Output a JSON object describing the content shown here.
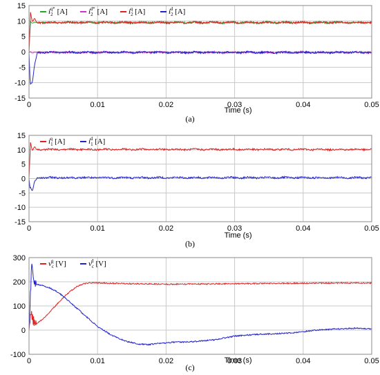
{
  "chart_data": [
    {
      "type": "line",
      "panel_label": "(a)",
      "xlabel": "Time (s)",
      "ylabel": "",
      "xlim": [
        0,
        0.05
      ],
      "ylim": [
        -15,
        15
      ],
      "xticks": [
        "0",
        "0.01",
        "0.02",
        "0.03",
        "0.04",
        "0.05"
      ],
      "yticks": [
        "15",
        "10",
        "5",
        "0",
        "-5",
        "-10",
        "-15"
      ],
      "grid": true,
      "legend_position": "top-left",
      "series": [
        {
          "name": "i2q* [A]",
          "sym": "i",
          "sub": "2",
          "sup": "q*",
          "unit": "[A]",
          "color": "#22aa22",
          "steady": 9.5,
          "start": 0
        },
        {
          "name": "i2d* [A]",
          "sym": "i",
          "sub": "2",
          "sup": "d*",
          "unit": "[A]",
          "color": "#cc33cc",
          "steady": -0.2,
          "start": 0
        },
        {
          "name": "i2q [A]",
          "sym": "i",
          "sub": "2",
          "sup": "q",
          "unit": "[A]",
          "color": "#dd2222",
          "steady": 9.5,
          "start": 0,
          "peak": 11.5
        },
        {
          "name": "i2d [A]",
          "sym": "i",
          "sub": "2",
          "sup": "d",
          "unit": "[A]",
          "color": "#2222cc",
          "steady": -0.2,
          "start": 0,
          "dip": -12
        }
      ]
    },
    {
      "type": "line",
      "panel_label": "(b)",
      "xlabel": "Time (s)",
      "ylabel": "",
      "xlim": [
        0,
        0.05
      ],
      "ylim": [
        -15,
        15
      ],
      "xticks": [
        "0",
        "0.01",
        "0.02",
        "0.03",
        "0.04",
        "0.05"
      ],
      "yticks": [
        "15",
        "10",
        "5",
        "0",
        "-5",
        "-10",
        "-15"
      ],
      "grid": true,
      "legend_position": "top-left",
      "series": [
        {
          "name": "i1q [A]",
          "sym": "i",
          "sub": "1",
          "sup": "q",
          "unit": "[A]",
          "color": "#dd2222",
          "steady": 10.1,
          "start": 0,
          "peak": 11.2
        },
        {
          "name": "i1d [A]",
          "sym": "i",
          "sub": "1",
          "sup": "d",
          "unit": "[A]",
          "color": "#2222cc",
          "steady": 0.3,
          "start": 0,
          "dip": -4.5
        }
      ]
    },
    {
      "type": "line",
      "panel_label": "(c)",
      "xlabel": "Time (s)",
      "ylabel": "",
      "xlim": [
        0,
        0.05
      ],
      "ylim": [
        -100,
        300
      ],
      "xticks": [
        "0",
        "0.01",
        "0.02",
        "0.03",
        "0.04",
        "0.05"
      ],
      "yticks": [
        "300",
        "200",
        "100",
        "0",
        "-100"
      ],
      "grid": true,
      "legend_position": "top-left",
      "series": [
        {
          "name": "vcq [V]",
          "sym": "v",
          "sub": "c",
          "sup": "q",
          "unit": "[V]",
          "color": "#dd2222",
          "x": [
            0,
            0.0003,
            0.0006,
            0.001,
            0.002,
            0.003,
            0.004,
            0.005,
            0.006,
            0.007,
            0.008,
            0.009,
            0.01,
            0.015,
            0.02,
            0.025,
            0.03,
            0.035,
            0.04,
            0.045,
            0.05
          ],
          "y": [
            0,
            75,
            40,
            25,
            45,
            75,
            105,
            135,
            160,
            180,
            192,
            196,
            195,
            192,
            190,
            191,
            192,
            193,
            194,
            195,
            195
          ]
        },
        {
          "name": "vcd [V]",
          "sym": "v",
          "sub": "c",
          "sup": "d",
          "unit": "[V]",
          "color": "#2222cc",
          "x": [
            0,
            0.0004,
            0.0007,
            0.001,
            0.002,
            0.003,
            0.004,
            0.005,
            0.006,
            0.007,
            0.008,
            0.009,
            0.01,
            0.012,
            0.014,
            0.016,
            0.0175,
            0.019,
            0.021,
            0.024,
            0.027,
            0.03,
            0.033,
            0.036,
            0.039,
            0.042,
            0.045,
            0.048,
            0.05
          ],
          "y": [
            0,
            280,
            200,
            190,
            185,
            175,
            160,
            140,
            115,
            90,
            65,
            40,
            15,
            -20,
            -45,
            -58,
            -60,
            -55,
            -50,
            -48,
            -40,
            -25,
            -18,
            -15,
            -10,
            0,
            5,
            8,
            5
          ]
        }
      ]
    }
  ]
}
